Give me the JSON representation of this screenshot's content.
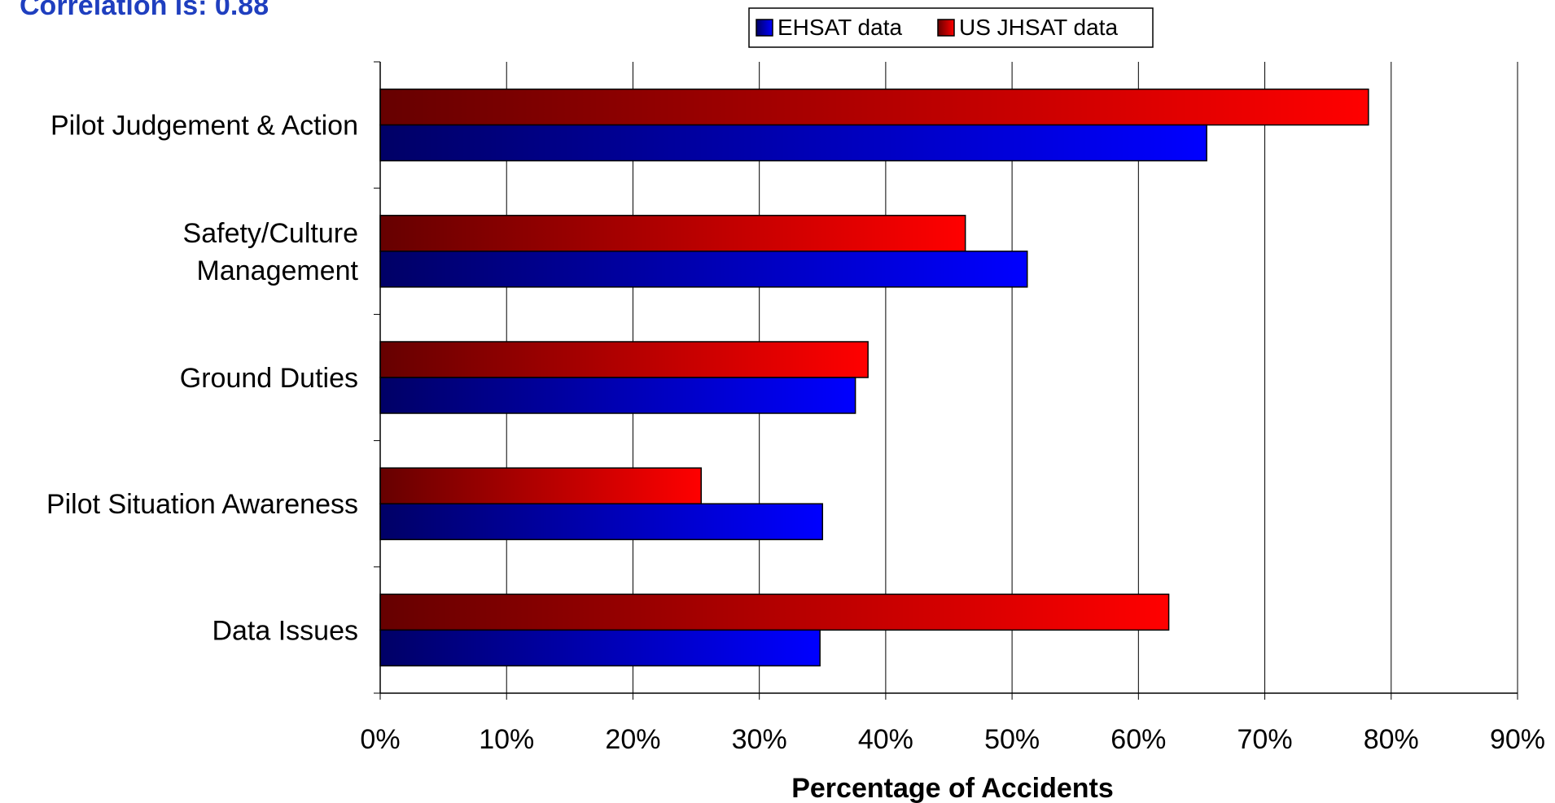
{
  "chart_data": {
    "type": "bar",
    "orientation": "horizontal",
    "title": "Correlation is: 0.88",
    "xlabel": "Percentage of Accidents",
    "ylabel": "",
    "xlim": [
      0,
      90
    ],
    "x_ticks": [
      "0%",
      "10%",
      "20%",
      "30%",
      "40%",
      "50%",
      "60%",
      "70%",
      "80%",
      "90%"
    ],
    "grid": "vertical",
    "legend_position": "top-center",
    "categories": [
      [
        "Pilot Judgement & Action"
      ],
      [
        "Safety/Culture",
        "Management"
      ],
      [
        "Ground Duties"
      ],
      [
        "Pilot Situation Awareness"
      ],
      [
        "Data Issues"
      ]
    ],
    "series": [
      {
        "name": "EHSAT data",
        "color": "#0000ff",
        "values": [
          65.4,
          51.2,
          37.6,
          35.0,
          34.8
        ]
      },
      {
        "name": "US JHSAT data",
        "color": "#ff0000",
        "values": [
          78.2,
          46.3,
          38.6,
          25.4,
          62.4
        ]
      }
    ]
  }
}
